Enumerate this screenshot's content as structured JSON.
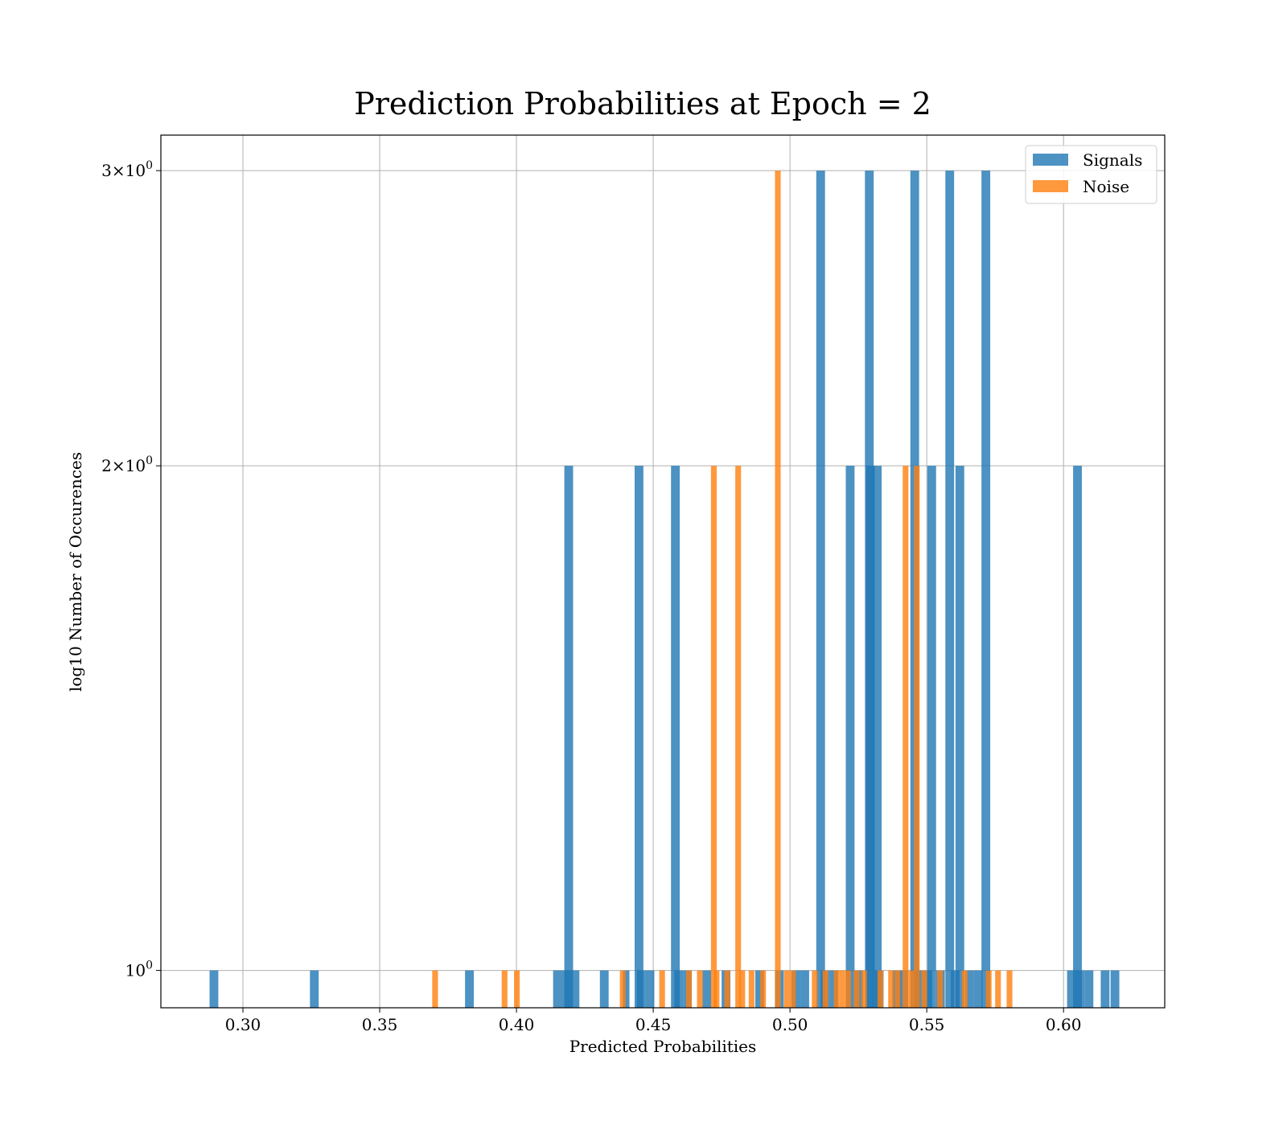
{
  "chart_data": {
    "type": "bar",
    "title": "Prediction Probabilities at Epoch = 2",
    "xlabel": "Predicted Probabilities",
    "ylabel": "log10 Number of Occurences",
    "yscale": "log",
    "xlim": [
      0.27,
      0.637
    ],
    "ylim": [
      0.95,
      3.15
    ],
    "grid": true,
    "legend_position": "top-right",
    "xticks": [
      {
        "value": 0.3,
        "label": "0.30"
      },
      {
        "value": 0.35,
        "label": "0.35"
      },
      {
        "value": 0.4,
        "label": "0.40"
      },
      {
        "value": 0.45,
        "label": "0.45"
      },
      {
        "value": 0.5,
        "label": "0.50"
      },
      {
        "value": 0.55,
        "label": "0.55"
      },
      {
        "value": 0.6,
        "label": "0.60"
      }
    ],
    "yticks": [
      {
        "value": 1,
        "base": "10",
        "exp": "0",
        "coef": ""
      },
      {
        "value": 2,
        "base": "10",
        "exp": "0",
        "coef": "2×"
      },
      {
        "value": 3,
        "base": "10",
        "exp": "0",
        "coef": "3×"
      }
    ],
    "series": [
      {
        "name": "Signals",
        "color": "#1f77b4",
        "bars": [
          [
            0.2878,
            0.291,
            1
          ],
          [
            0.3245,
            0.3277,
            1
          ],
          [
            0.3812,
            0.3844,
            1
          ],
          [
            0.4134,
            0.4166,
            1
          ],
          [
            0.4166,
            0.4198,
            1
          ],
          [
            0.4175,
            0.4207,
            2
          ],
          [
            0.4198,
            0.423,
            1
          ],
          [
            0.4305,
            0.4337,
            1
          ],
          [
            0.4389,
            0.4413,
            1
          ],
          [
            0.4432,
            0.4464,
            2
          ],
          [
            0.444,
            0.4472,
            1
          ],
          [
            0.4472,
            0.4504,
            1
          ],
          [
            0.4565,
            0.4597,
            2
          ],
          [
            0.4577,
            0.4609,
            1
          ],
          [
            0.4609,
            0.4641,
            1
          ],
          [
            0.468,
            0.4712,
            1
          ],
          [
            0.475,
            0.4782,
            1
          ],
          [
            0.4873,
            0.4905,
            1
          ],
          [
            0.4945,
            0.4977,
            1
          ],
          [
            0.5006,
            0.5038,
            1
          ],
          [
            0.5038,
            0.507,
            1
          ],
          [
            0.5096,
            0.5128,
            3
          ],
          [
            0.5112,
            0.5144,
            1
          ],
          [
            0.5144,
            0.5176,
            1
          ],
          [
            0.5204,
            0.5236,
            2
          ],
          [
            0.5236,
            0.5268,
            1
          ],
          [
            0.5274,
            0.5306,
            3
          ],
          [
            0.5278,
            0.531,
            2
          ],
          [
            0.5303,
            0.5335,
            2
          ],
          [
            0.531,
            0.5342,
            1
          ],
          [
            0.5374,
            0.5406,
            1
          ],
          [
            0.54,
            0.5432,
            1
          ],
          [
            0.544,
            0.5472,
            3
          ],
          [
            0.5456,
            0.5488,
            1
          ],
          [
            0.5488,
            0.552,
            1
          ],
          [
            0.5502,
            0.5534,
            2
          ],
          [
            0.5534,
            0.5566,
            1
          ],
          [
            0.5568,
            0.56,
            3
          ],
          [
            0.5588,
            0.562,
            1
          ],
          [
            0.5605,
            0.5637,
            2
          ],
          [
            0.564,
            0.5672,
            1
          ],
          [
            0.5672,
            0.5704,
            1
          ],
          [
            0.57,
            0.5732,
            3
          ],
          [
            0.6013,
            0.6045,
            1
          ],
          [
            0.6035,
            0.6067,
            2
          ],
          [
            0.6045,
            0.6077,
            1
          ],
          [
            0.6077,
            0.6109,
            1
          ],
          [
            0.6136,
            0.6168,
            1
          ],
          [
            0.6172,
            0.6204,
            1
          ]
        ]
      },
      {
        "name": "Noise",
        "color": "#ff7f0e",
        "bars": [
          [
            0.3692,
            0.3713,
            1
          ],
          [
            0.3946,
            0.3967,
            1
          ],
          [
            0.3991,
            0.4012,
            1
          ],
          [
            0.4378,
            0.4399,
            1
          ],
          [
            0.4522,
            0.4543,
            1
          ],
          [
            0.462,
            0.4641,
            1
          ],
          [
            0.466,
            0.4681,
            1
          ],
          [
            0.4711,
            0.4732,
            2
          ],
          [
            0.4721,
            0.4742,
            1
          ],
          [
            0.476,
            0.4781,
            1
          ],
          [
            0.48,
            0.4821,
            2
          ],
          [
            0.4815,
            0.4836,
            1
          ],
          [
            0.4849,
            0.487,
            1
          ],
          [
            0.4891,
            0.4912,
            1
          ],
          [
            0.4945,
            0.4966,
            3
          ],
          [
            0.4978,
            0.4999,
            1
          ],
          [
            0.5,
            0.5021,
            1
          ],
          [
            0.508,
            0.5101,
            1
          ],
          [
            0.5119,
            0.514,
            1
          ],
          [
            0.516,
            0.5181,
            1
          ],
          [
            0.5181,
            0.5202,
            1
          ],
          [
            0.5202,
            0.5223,
            1
          ],
          [
            0.5233,
            0.5254,
            1
          ],
          [
            0.526,
            0.5281,
            1
          ],
          [
            0.532,
            0.5341,
            1
          ],
          [
            0.5359,
            0.538,
            1
          ],
          [
            0.5383,
            0.5404,
            1
          ],
          [
            0.5412,
            0.5433,
            2
          ],
          [
            0.5433,
            0.5454,
            1
          ],
          [
            0.5453,
            0.5474,
            2
          ],
          [
            0.548,
            0.5501,
            1
          ],
          [
            0.5538,
            0.5559,
            1
          ],
          [
            0.5628,
            0.5649,
            1
          ],
          [
            0.5716,
            0.5737,
            1
          ],
          [
            0.575,
            0.5771,
            1
          ],
          [
            0.5792,
            0.5813,
            1
          ]
        ]
      }
    ]
  }
}
